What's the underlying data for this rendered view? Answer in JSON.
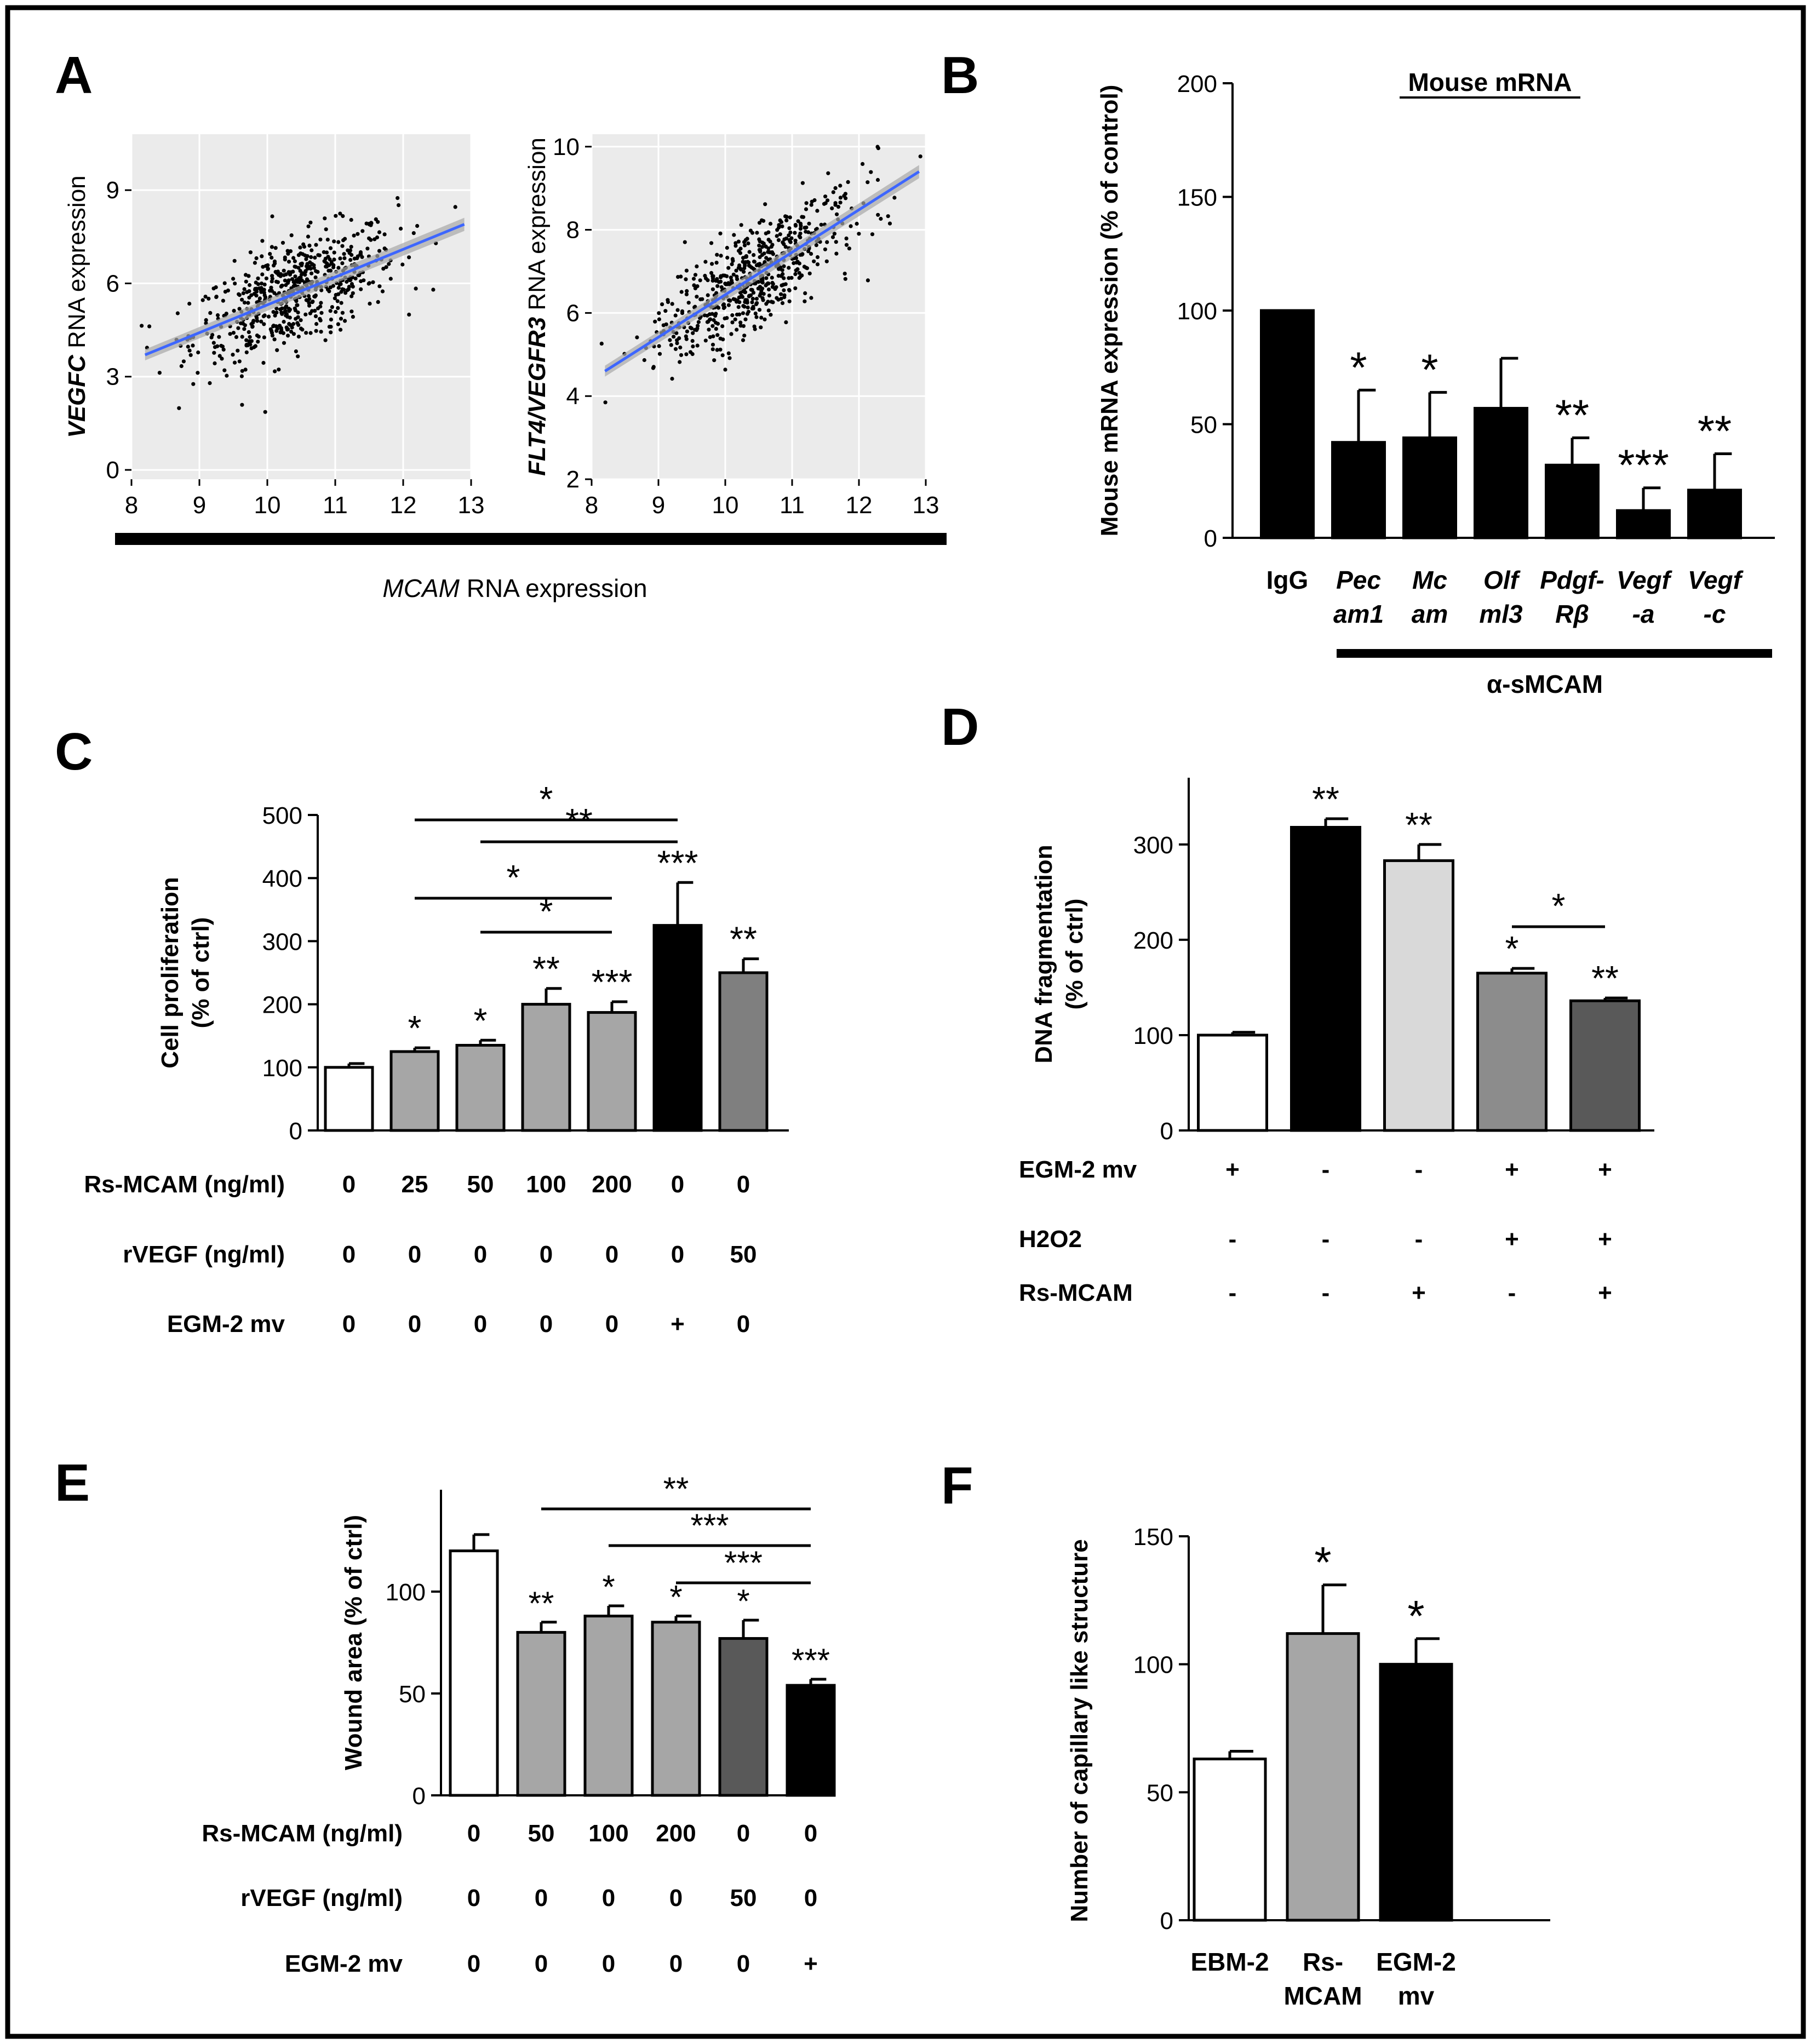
{
  "panels": {
    "A": {
      "letter": "A",
      "shared_xlabel_italic": "MCAM",
      "shared_xlabel_rest": " RNA expression"
    },
    "B": {
      "letter": "B"
    },
    "C": {
      "letter": "C"
    },
    "D": {
      "letter": "D"
    },
    "E": {
      "letter": "E"
    },
    "F": {
      "letter": "F"
    }
  },
  "chart_data": [
    {
      "id": "A-left",
      "type": "scatter",
      "ylabel_italic": "VEGFC",
      "ylabel_rest": " RNA expression",
      "xlim": [
        8,
        13
      ],
      "ylim": [
        -0.3,
        10.8
      ],
      "xticks": [
        8,
        9,
        10,
        11,
        12,
        13
      ],
      "yticks": [
        0,
        3,
        6,
        9
      ],
      "n_points": 620,
      "x_center": 10.4,
      "x_sd": 0.75,
      "residual_sd": 0.85,
      "fit": {
        "x": [
          8.2,
          12.9
        ],
        "y": [
          3.7,
          7.9
        ]
      }
    },
    {
      "id": "A-right",
      "type": "scatter",
      "ylabel_italic": "FLT4/VEGFR3",
      "ylabel_rest": " RNA expression",
      "xlim": [
        8,
        13
      ],
      "ylim": [
        2,
        10.3
      ],
      "xticks": [
        8,
        9,
        10,
        11,
        12,
        13
      ],
      "yticks": [
        2,
        4,
        6,
        8,
        10
      ],
      "n_points": 620,
      "x_center": 10.4,
      "x_sd": 0.75,
      "residual_sd": 0.6,
      "fit": {
        "x": [
          8.2,
          12.9
        ],
        "y": [
          4.6,
          9.4
        ]
      }
    },
    {
      "id": "B",
      "type": "bar",
      "title": "Mouse mRNA",
      "ylabel": "Mouse mRNA expression (% of control)",
      "ylim": [
        0,
        200
      ],
      "yticks": [
        0,
        50,
        100,
        150,
        200
      ],
      "categories": [
        {
          "l1": "IgG",
          "l2": "",
          "italic": false
        },
        {
          "l1": "Pec",
          "l2": "am1",
          "italic": true
        },
        {
          "l1": "Mc",
          "l2": "am",
          "italic": true
        },
        {
          "l1": "Olf",
          "l2": "ml3",
          "italic": true
        },
        {
          "l1": "Pdgf-",
          "l2": "Rβ",
          "italic": true
        },
        {
          "l1": "Vegf",
          "l2": "-a",
          "italic": true
        },
        {
          "l1": "Vegf",
          "l2": "-c",
          "italic": true
        }
      ],
      "values": [
        100,
        42,
        44,
        57,
        32,
        12,
        21
      ],
      "errors": [
        0,
        23,
        20,
        22,
        12,
        10,
        16
      ],
      "fills": [
        "#000000",
        "#000000",
        "#000000",
        "#000000",
        "#000000",
        "#000000",
        "#000000"
      ],
      "significance": [
        "",
        "*",
        "*",
        "",
        "**",
        "***",
        "**"
      ],
      "group_label": "α-sMCAM"
    },
    {
      "id": "C",
      "type": "bar",
      "ylabel_lines": [
        "Cell proliferation",
        "(% of ctrl)"
      ],
      "ylim": [
        0,
        500
      ],
      "yticks": [
        0,
        100,
        200,
        300,
        400,
        500
      ],
      "values": [
        100,
        125,
        135,
        200,
        187,
        325,
        250
      ],
      "errors": [
        6,
        6,
        8,
        25,
        17,
        68,
        22
      ],
      "fills": [
        "#ffffff",
        "#a6a6a6",
        "#a6a6a6",
        "#a6a6a6",
        "#a6a6a6",
        "#000000",
        "#7f7f7f"
      ],
      "significance": [
        "",
        "*",
        "*",
        "**",
        "***",
        "***",
        "**"
      ],
      "brackets": [
        {
          "from": 1,
          "to": 5,
          "label": "*"
        },
        {
          "from": 2,
          "to": 5,
          "label": "**"
        },
        {
          "from": 1,
          "to": 4,
          "label": "*"
        },
        {
          "from": 2,
          "to": 4,
          "label": "*"
        }
      ],
      "conditions": [
        {
          "label": "Rs-MCAM (ng/ml)",
          "values": [
            "0",
            "25",
            "50",
            "100",
            "200",
            "0",
            "0"
          ]
        },
        {
          "label": "rVEGF (ng/ml)",
          "values": [
            "0",
            "0",
            "0",
            "0",
            "0",
            "0",
            "50"
          ]
        },
        {
          "label": "EGM-2 mv",
          "values": [
            "0",
            "0",
            "0",
            "0",
            "0",
            "+",
            "0"
          ]
        }
      ]
    },
    {
      "id": "D",
      "type": "bar",
      "ylabel_lines": [
        "DNA fragmentation",
        "(% of ctrl)"
      ],
      "ylim": [
        0,
        370
      ],
      "yticks": [
        0,
        100,
        200,
        300
      ],
      "values": [
        100,
        318,
        283,
        165,
        136
      ],
      "errors": [
        3,
        9,
        17,
        5,
        3
      ],
      "fills": [
        "#ffffff",
        "#000000",
        "#d9d9d9",
        "#8c8c8c",
        "#595959"
      ],
      "significance": [
        "",
        "**",
        "**",
        "*",
        "**"
      ],
      "brackets": [
        {
          "from": 3,
          "to": 4,
          "label": "*"
        }
      ],
      "conditions": [
        {
          "label": "EGM-2 mv",
          "values": [
            "+",
            "-",
            "-",
            "+",
            "+"
          ]
        },
        {
          "label": "H2O2",
          "values": [
            "-",
            "-",
            "-",
            "+",
            "+"
          ]
        },
        {
          "label": "Rs-MCAM",
          "values": [
            "-",
            "-",
            "+",
            "-",
            "+"
          ]
        }
      ]
    },
    {
      "id": "E",
      "type": "bar",
      "ylabel": "Wound area (% of ctrl)",
      "ylim": [
        0,
        150
      ],
      "yticks": [
        0,
        50,
        100
      ],
      "values": [
        120,
        80,
        88,
        85,
        77,
        54
      ],
      "errors": [
        8,
        5,
        5,
        3,
        9,
        3
      ],
      "fills": [
        "#ffffff",
        "#a6a6a6",
        "#a6a6a6",
        "#a6a6a6",
        "#595959",
        "#000000"
      ],
      "significance": [
        "",
        "**",
        "*",
        "*",
        "*",
        "***"
      ],
      "brackets": [
        {
          "from": 1,
          "to": 5,
          "label": "**"
        },
        {
          "from": 2,
          "to": 5,
          "label": "***"
        },
        {
          "from": 3,
          "to": 5,
          "label": "***"
        }
      ],
      "conditions": [
        {
          "label": "Rs-MCAM (ng/ml)",
          "values": [
            "0",
            "50",
            "100",
            "200",
            "0",
            "0"
          ]
        },
        {
          "label": "rVEGF (ng/ml)",
          "values": [
            "0",
            "0",
            "0",
            "0",
            "50",
            "0"
          ]
        },
        {
          "label": "EGM-2 mv",
          "values": [
            "0",
            "0",
            "0",
            "0",
            "0",
            "+"
          ]
        }
      ]
    },
    {
      "id": "F",
      "type": "bar",
      "ylabel": "Number of capillary like structure",
      "ylim": [
        0,
        150
      ],
      "yticks": [
        0,
        50,
        100,
        150
      ],
      "categories": [
        {
          "l1": "EBM-2",
          "l2": ""
        },
        {
          "l1": "Rs-",
          "l2": "MCAM"
        },
        {
          "l1": "EGM-2",
          "l2": "mv"
        }
      ],
      "values": [
        63,
        112,
        100
      ],
      "errors": [
        3,
        19,
        10
      ],
      "fills": [
        "#ffffff",
        "#a6a6a6",
        "#000000"
      ],
      "significance": [
        "",
        "*",
        "*"
      ]
    }
  ]
}
